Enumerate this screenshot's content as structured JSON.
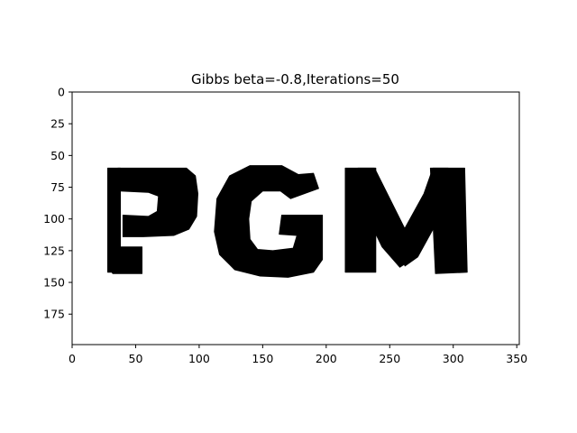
{
  "chart_data": {
    "type": "heatmap",
    "title": "Gibbs beta=-0.8,Iterations=50",
    "xlabel": "",
    "ylabel": "",
    "xlim": [
      0,
      352
    ],
    "ylim": [
      199,
      0
    ],
    "x_ticks": [
      0,
      50,
      100,
      150,
      200,
      250,
      300,
      350
    ],
    "y_ticks": [
      0,
      25,
      50,
      75,
      100,
      125,
      150,
      175
    ],
    "grid": false,
    "colormap": "binary",
    "image_text": "PGM",
    "colors": {
      "foreground": "#000000",
      "background": "#ffffff"
    },
    "foreground_regions": [
      {
        "name": "P-stem",
        "polygon": [
          [
            28,
            60
          ],
          [
            38,
            60
          ],
          [
            38,
            142
          ],
          [
            28,
            142
          ]
        ]
      },
      {
        "name": "P-bowl",
        "polygon": [
          [
            36,
            60
          ],
          [
            90,
            60
          ],
          [
            97,
            66
          ],
          [
            99,
            80
          ],
          [
            98,
            98
          ],
          [
            92,
            108
          ],
          [
            80,
            113
          ],
          [
            56,
            114
          ],
          [
            40,
            114
          ],
          [
            40,
            97
          ],
          [
            60,
            98
          ],
          [
            67,
            94
          ],
          [
            68,
            82
          ],
          [
            60,
            79
          ],
          [
            38,
            78
          ]
        ]
      },
      {
        "name": "P-base",
        "polygon": [
          [
            28,
            122
          ],
          [
            55,
            122
          ],
          [
            55,
            143
          ],
          [
            32,
            143
          ],
          [
            28,
            137
          ]
        ]
      },
      {
        "name": "G-body",
        "polygon": [
          [
            178,
            65
          ],
          [
            165,
            58
          ],
          [
            140,
            58
          ],
          [
            124,
            66
          ],
          [
            114,
            84
          ],
          [
            112,
            110
          ],
          [
            116,
            128
          ],
          [
            128,
            140
          ],
          [
            148,
            145
          ],
          [
            170,
            146
          ],
          [
            190,
            142
          ],
          [
            197,
            132
          ],
          [
            197,
            97
          ],
          [
            165,
            97
          ],
          [
            163,
            112
          ],
          [
            177,
            113
          ],
          [
            174,
            123
          ],
          [
            158,
            125
          ],
          [
            146,
            124
          ],
          [
            140,
            116
          ],
          [
            139,
            100
          ],
          [
            141,
            86
          ],
          [
            150,
            78
          ],
          [
            164,
            78
          ],
          [
            172,
            84
          ],
          [
            194,
            76
          ],
          [
            190,
            64
          ]
        ]
      },
      {
        "name": "M-left-leg",
        "polygon": [
          [
            215,
            60
          ],
          [
            239,
            60
          ],
          [
            239,
            142
          ],
          [
            215,
            142
          ]
        ]
      },
      {
        "name": "M-left-diag",
        "polygon": [
          [
            225,
            60
          ],
          [
            238,
            60
          ],
          [
            262,
            108
          ],
          [
            270,
            130
          ],
          [
            258,
            138
          ],
          [
            244,
            122
          ],
          [
            226,
            85
          ]
        ]
      },
      {
        "name": "M-right-diag",
        "polygon": [
          [
            284,
            60
          ],
          [
            296,
            60
          ],
          [
            294,
            90
          ],
          [
            272,
            130
          ],
          [
            262,
            137
          ],
          [
            255,
            120
          ],
          [
            277,
            80
          ]
        ]
      },
      {
        "name": "M-right-leg",
        "polygon": [
          [
            282,
            60
          ],
          [
            309,
            60
          ],
          [
            311,
            142
          ],
          [
            286,
            143
          ]
        ]
      }
    ]
  }
}
